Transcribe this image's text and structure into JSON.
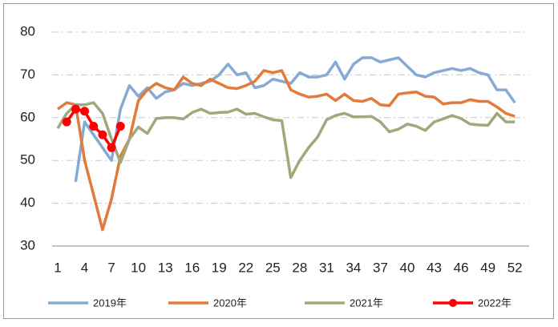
{
  "chart_data": {
    "type": "line",
    "categories": [
      1,
      null,
      null,
      4,
      null,
      null,
      7,
      null,
      null,
      10,
      null,
      null,
      13,
      null,
      null,
      16,
      null,
      null,
      19,
      null,
      null,
      22,
      null,
      null,
      25,
      null,
      null,
      28,
      null,
      null,
      31,
      null,
      null,
      34,
      null,
      null,
      37,
      null,
      null,
      40,
      null,
      null,
      43,
      null,
      null,
      46,
      null,
      null,
      49,
      null,
      null,
      52
    ],
    "series": [
      {
        "name": "2019年",
        "color": "#86aad6",
        "values": [
          null,
          null,
          45,
          59,
          56,
          53,
          50,
          62,
          67.5,
          65,
          67,
          64.5,
          66,
          66.5,
          68,
          67.5,
          68,
          68.5,
          70,
          72.5,
          70,
          70.5,
          67,
          67.5,
          69,
          68.5,
          68,
          70.5,
          69.5,
          69.5,
          70,
          73,
          69,
          72.5,
          74,
          74,
          73,
          73.5,
          74,
          72,
          70,
          69.5,
          70.5,
          71,
          71.5,
          71,
          71.5,
          70.5,
          70,
          66.5,
          66.5,
          63.5
        ]
      },
      {
        "name": "2020年",
        "color": "#e27b3a",
        "values": [
          62,
          63.5,
          63,
          50,
          42,
          33.8,
          41,
          51,
          55,
          64,
          66.5,
          68,
          67,
          66.5,
          69.5,
          68,
          67.5,
          69,
          68,
          67,
          66.8,
          67.5,
          68.5,
          71,
          70.5,
          71,
          66.5,
          65.5,
          64.8,
          65,
          65.5,
          64,
          65.5,
          64,
          63.8,
          64.5,
          63,
          62.8,
          65.5,
          65.8,
          66,
          65,
          64.8,
          63.2,
          63.5,
          63.5,
          64.2,
          63.8,
          63.8,
          62.5,
          61,
          60.3
        ]
      },
      {
        "name": "2021年",
        "color": "#9faa7c",
        "values": [
          57.5,
          61,
          63,
          63,
          63.5,
          61,
          55,
          49.5,
          55,
          57.8,
          56.3,
          59.8,
          60,
          60,
          59.7,
          61.2,
          62,
          61,
          61.2,
          61.3,
          62,
          60.8,
          61,
          60.2,
          59.5,
          59.3,
          46,
          50,
          53,
          55.5,
          59.5,
          60.5,
          61,
          60.2,
          60.2,
          60.3,
          59,
          56.7,
          57.3,
          58.5,
          58,
          57,
          59,
          59.7,
          60.5,
          59.8,
          58.5,
          58.3,
          58.2,
          61,
          59,
          59
        ]
      },
      {
        "name": "2022年",
        "color": "#ff0000",
        "markers": true,
        "values": [
          null,
          59,
          62,
          61.5,
          58,
          56,
          53,
          58,
          null,
          null,
          null,
          null,
          null,
          null,
          null,
          null,
          null,
          null,
          null,
          null,
          null,
          null,
          null,
          null,
          null,
          null,
          null,
          null,
          null,
          null,
          null,
          null,
          null,
          null,
          null,
          null,
          null,
          null,
          null,
          null,
          null,
          null,
          null,
          null,
          null,
          null,
          null,
          null,
          null,
          null,
          null,
          null
        ]
      }
    ],
    "ylim": [
      30,
      80
    ],
    "yticks": [
      30,
      40,
      50,
      60,
      70,
      80
    ],
    "grid": true,
    "legend": "bottom"
  }
}
